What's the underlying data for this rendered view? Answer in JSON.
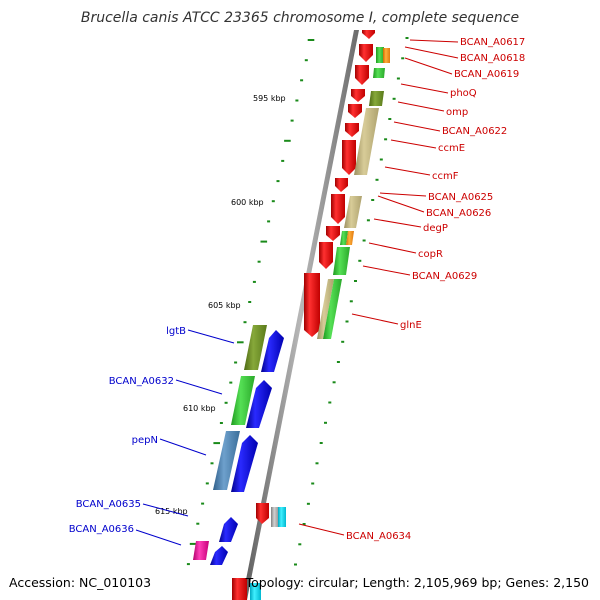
{
  "title": "Brucella canis ATCC 23365 chromosome I, complete sequence",
  "footer": {
    "accession": "Accession: NC_010103",
    "summary": "Topology: circular; Length: 2,105,969 bp; Genes: 2,150"
  },
  "kbp_labels": [
    "595 kbp",
    "600 kbp",
    "605 kbp",
    "610 kbp",
    "615 kbp"
  ],
  "gene_labels_right": [
    "BCAN_A0617",
    "BCAN_A0618",
    "BCAN_A0619",
    "phoQ",
    "omp",
    "BCAN_A0622",
    "ccmE",
    "ccmF",
    "BCAN_A0625",
    "BCAN_A0626",
    "degP",
    "copR",
    "BCAN_A0629",
    "glnE",
    "BCAN_A0634"
  ],
  "gene_labels_left": [
    "lgtB",
    "BCAN_A0632",
    "pepN",
    "BCAN_A0635",
    "BCAN_A0636"
  ],
  "colors": {
    "forward_strand": "#ff0000",
    "reverse_strand": "#0000ff",
    "backbone": "#7a7a7a",
    "ticks": "#1a8a1a",
    "right_label": "#cc0000",
    "left_label": "#0000cc"
  }
}
